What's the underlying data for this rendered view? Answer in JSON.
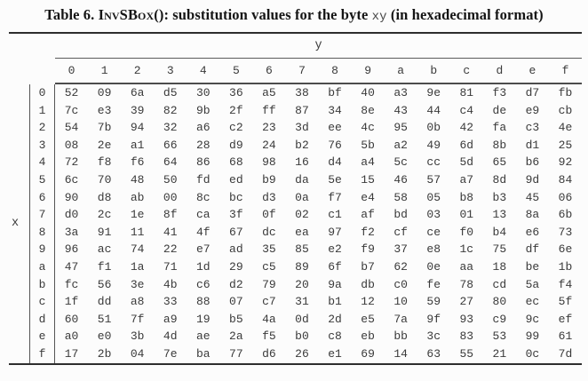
{
  "caption": {
    "prefix": "Table 6. ",
    "function_name": "InvSBox",
    "after_function": "(): substitution values for the byte ",
    "byte_var": "xy",
    "suffix": " (in hexadecimal format)"
  },
  "table": {
    "y_axis_label": "y",
    "x_axis_label": "x",
    "col_headers": [
      "0",
      "1",
      "2",
      "3",
      "4",
      "5",
      "6",
      "7",
      "8",
      "9",
      "a",
      "b",
      "c",
      "d",
      "e",
      "f"
    ],
    "rows": [
      {
        "label": "0",
        "values": [
          "52",
          "09",
          "6a",
          "d5",
          "30",
          "36",
          "a5",
          "38",
          "bf",
          "40",
          "a3",
          "9e",
          "81",
          "f3",
          "d7",
          "fb"
        ]
      },
      {
        "label": "1",
        "values": [
          "7c",
          "e3",
          "39",
          "82",
          "9b",
          "2f",
          "ff",
          "87",
          "34",
          "8e",
          "43",
          "44",
          "c4",
          "de",
          "e9",
          "cb"
        ]
      },
      {
        "label": "2",
        "values": [
          "54",
          "7b",
          "94",
          "32",
          "a6",
          "c2",
          "23",
          "3d",
          "ee",
          "4c",
          "95",
          "0b",
          "42",
          "fa",
          "c3",
          "4e"
        ]
      },
      {
        "label": "3",
        "values": [
          "08",
          "2e",
          "a1",
          "66",
          "28",
          "d9",
          "24",
          "b2",
          "76",
          "5b",
          "a2",
          "49",
          "6d",
          "8b",
          "d1",
          "25"
        ]
      },
      {
        "label": "4",
        "values": [
          "72",
          "f8",
          "f6",
          "64",
          "86",
          "68",
          "98",
          "16",
          "d4",
          "a4",
          "5c",
          "cc",
          "5d",
          "65",
          "b6",
          "92"
        ]
      },
      {
        "label": "5",
        "values": [
          "6c",
          "70",
          "48",
          "50",
          "fd",
          "ed",
          "b9",
          "da",
          "5e",
          "15",
          "46",
          "57",
          "a7",
          "8d",
          "9d",
          "84"
        ]
      },
      {
        "label": "6",
        "values": [
          "90",
          "d8",
          "ab",
          "00",
          "8c",
          "bc",
          "d3",
          "0a",
          "f7",
          "e4",
          "58",
          "05",
          "b8",
          "b3",
          "45",
          "06"
        ]
      },
      {
        "label": "7",
        "values": [
          "d0",
          "2c",
          "1e",
          "8f",
          "ca",
          "3f",
          "0f",
          "02",
          "c1",
          "af",
          "bd",
          "03",
          "01",
          "13",
          "8a",
          "6b"
        ]
      },
      {
        "label": "8",
        "values": [
          "3a",
          "91",
          "11",
          "41",
          "4f",
          "67",
          "dc",
          "ea",
          "97",
          "f2",
          "cf",
          "ce",
          "f0",
          "b4",
          "e6",
          "73"
        ]
      },
      {
        "label": "9",
        "values": [
          "96",
          "ac",
          "74",
          "22",
          "e7",
          "ad",
          "35",
          "85",
          "e2",
          "f9",
          "37",
          "e8",
          "1c",
          "75",
          "df",
          "6e"
        ]
      },
      {
        "label": "a",
        "values": [
          "47",
          "f1",
          "1a",
          "71",
          "1d",
          "29",
          "c5",
          "89",
          "6f",
          "b7",
          "62",
          "0e",
          "aa",
          "18",
          "be",
          "1b"
        ]
      },
      {
        "label": "b",
        "values": [
          "fc",
          "56",
          "3e",
          "4b",
          "c6",
          "d2",
          "79",
          "20",
          "9a",
          "db",
          "c0",
          "fe",
          "78",
          "cd",
          "5a",
          "f4"
        ]
      },
      {
        "label": "c",
        "values": [
          "1f",
          "dd",
          "a8",
          "33",
          "88",
          "07",
          "c7",
          "31",
          "b1",
          "12",
          "10",
          "59",
          "27",
          "80",
          "ec",
          "5f"
        ]
      },
      {
        "label": "d",
        "values": [
          "60",
          "51",
          "7f",
          "a9",
          "19",
          "b5",
          "4a",
          "0d",
          "2d",
          "e5",
          "7a",
          "9f",
          "93",
          "c9",
          "9c",
          "ef"
        ]
      },
      {
        "label": "e",
        "values": [
          "a0",
          "e0",
          "3b",
          "4d",
          "ae",
          "2a",
          "f5",
          "b0",
          "c8",
          "eb",
          "bb",
          "3c",
          "83",
          "53",
          "99",
          "61"
        ]
      },
      {
        "label": "f",
        "values": [
          "17",
          "2b",
          "04",
          "7e",
          "ba",
          "77",
          "d6",
          "26",
          "e1",
          "69",
          "14",
          "63",
          "55",
          "21",
          "0c",
          "7d"
        ]
      }
    ]
  },
  "colors": {
    "background": "#fcfcfc",
    "caption_text": "#151515",
    "mono_text": "#3a3a3a",
    "heavy_rule": "#2e2e2e",
    "light_rule": "#555555"
  }
}
